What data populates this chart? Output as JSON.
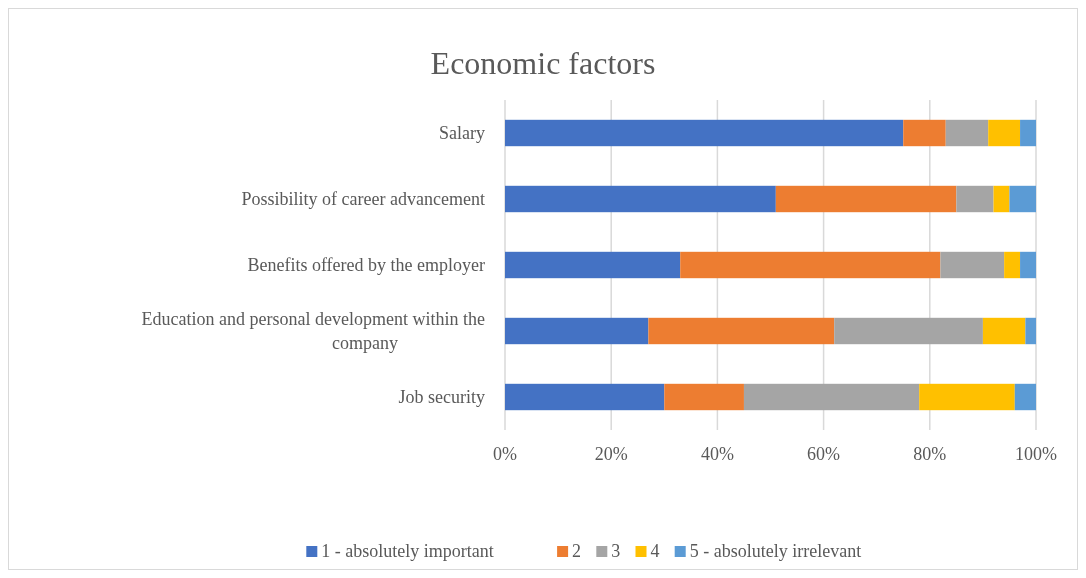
{
  "chart_data": {
    "type": "bar",
    "title": "Economic factors",
    "orientation": "horizontal",
    "stacked": true,
    "categories": [
      "Salary",
      "Possibility of career advancement ",
      "Benefits offered by the employer",
      "Education and personal development within the company",
      "Job security"
    ],
    "series": [
      {
        "name": "1 - absolutely important",
        "color": "#4472c4",
        "values": [
          75,
          51,
          33,
          27,
          30
        ]
      },
      {
        "name": "2",
        "color": "#ed7d31",
        "values": [
          8,
          34,
          49,
          35,
          15
        ]
      },
      {
        "name": "3",
        "color": "#a5a5a5",
        "values": [
          8,
          7,
          12,
          28,
          33
        ]
      },
      {
        "name": "4",
        "color": "#ffc000",
        "values": [
          6,
          3,
          3,
          8,
          18
        ]
      },
      {
        "name": "5 - absolutely irrelevant",
        "color": "#5b9bd5",
        "values": [
          3,
          5,
          3,
          2,
          4
        ]
      }
    ],
    "xlim": [
      0,
      100
    ],
    "xticks": [
      {
        "value": 0,
        "label": "0%"
      },
      {
        "value": 20,
        "label": "20%"
      },
      {
        "value": 40,
        "label": "40%"
      },
      {
        "value": 60,
        "label": "60%"
      },
      {
        "value": 80,
        "label": "80%"
      },
      {
        "value": 100,
        "label": "100%"
      }
    ],
    "grid": "x",
    "legend": "bottom"
  }
}
